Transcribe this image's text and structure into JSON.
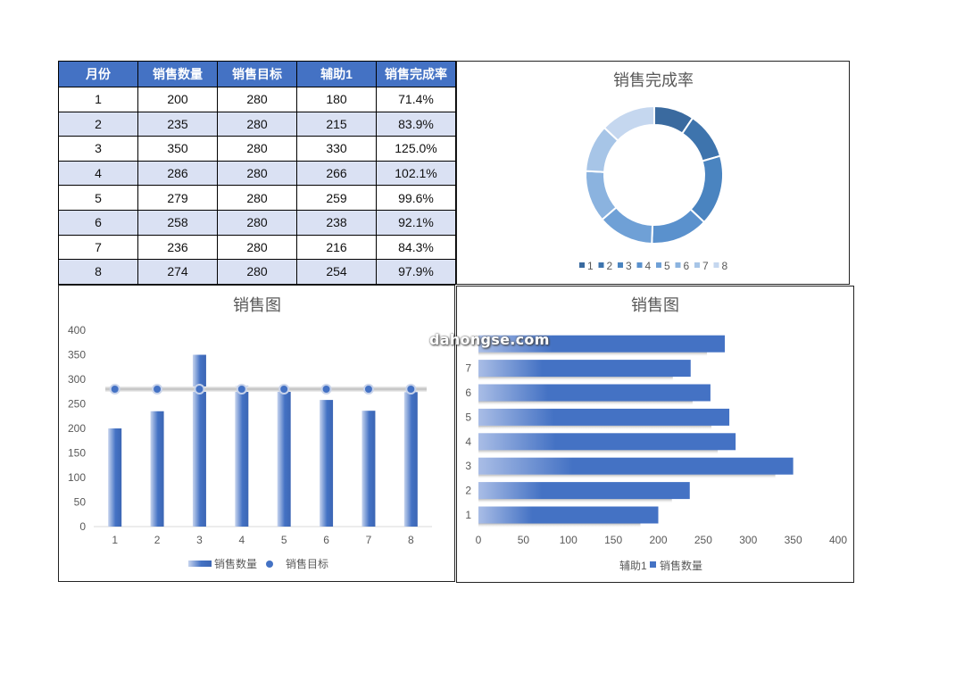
{
  "table": {
    "headers": [
      "月份",
      "销售数量",
      "销售目标",
      "辅助1",
      "销售完成率"
    ],
    "rows": [
      [
        "1",
        "200",
        "280",
        "180",
        "71.4%"
      ],
      [
        "2",
        "235",
        "280",
        "215",
        "83.9%"
      ],
      [
        "3",
        "350",
        "280",
        "330",
        "125.0%"
      ],
      [
        "4",
        "286",
        "280",
        "266",
        "102.1%"
      ],
      [
        "5",
        "279",
        "280",
        "259",
        "99.6%"
      ],
      [
        "6",
        "258",
        "280",
        "238",
        "92.1%"
      ],
      [
        "7",
        "236",
        "280",
        "216",
        "84.3%"
      ],
      [
        "8",
        "274",
        "280",
        "254",
        "97.9%"
      ]
    ]
  },
  "watermark": "dahongse.com",
  "colors": {
    "header_bg": "#4472c4",
    "row_alt": "#dae1f3",
    "bar": "#4472c4",
    "donut": [
      "#3a6a9f",
      "#3e74ad",
      "#4a84c0",
      "#5a91cd",
      "#6fa0d6",
      "#8bb3df",
      "#a7c5e7",
      "#c5d7ef"
    ]
  },
  "chart_data": [
    {
      "type": "pie",
      "title": "销售完成率",
      "categories": [
        "1",
        "2",
        "3",
        "4",
        "5",
        "6",
        "7",
        "8"
      ],
      "values": [
        71.4,
        83.9,
        125.0,
        102.1,
        99.6,
        92.1,
        84.3,
        97.9
      ],
      "legend": "bottom"
    },
    {
      "type": "bar",
      "title": "销售图",
      "categories": [
        "1",
        "2",
        "3",
        "4",
        "5",
        "6",
        "7",
        "8"
      ],
      "series": [
        {
          "name": "销售数量",
          "values": [
            200,
            235,
            350,
            286,
            279,
            258,
            236,
            274
          ]
        },
        {
          "name": "销售目标",
          "values": [
            280,
            280,
            280,
            280,
            280,
            280,
            280,
            280
          ]
        }
      ],
      "yticks": [
        "0",
        "50",
        "100",
        "150",
        "200",
        "250",
        "300",
        "350",
        "400"
      ],
      "ylim": [
        0,
        400
      ],
      "legend": "bottom"
    },
    {
      "type": "bar",
      "orientation": "horizontal",
      "title": "销售图",
      "categories": [
        "1",
        "2",
        "3",
        "4",
        "5",
        "6",
        "7",
        "8"
      ],
      "series": [
        {
          "name": "辅助1",
          "values": [
            180,
            215,
            330,
            266,
            259,
            238,
            216,
            254
          ]
        },
        {
          "name": "销售数量",
          "values": [
            200,
            235,
            350,
            286,
            279,
            258,
            236,
            274
          ]
        }
      ],
      "yticks": [
        "1",
        "2",
        "3",
        "4",
        "5",
        "6",
        "7"
      ],
      "xticks": [
        "0",
        "50",
        "100",
        "150",
        "200",
        "250",
        "300",
        "350",
        "400"
      ],
      "xlim": [
        0,
        400
      ],
      "legend": "bottom"
    }
  ]
}
